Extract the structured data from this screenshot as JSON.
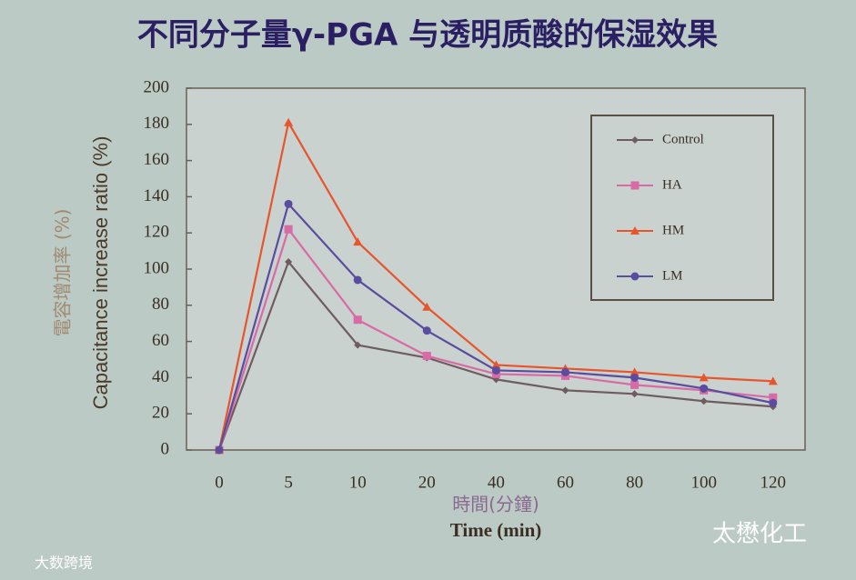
{
  "chart_data": {
    "type": "line",
    "title": "不同分子量γ-PGA 与透明质酸的保湿效果",
    "y_label_cn": "電容增加率 (%)",
    "y_label": "Capacitance increase ratio (%)",
    "x_label_cn": "時間(分鐘)",
    "x_label": "Time (min)",
    "categories": [
      "0",
      "5",
      "10",
      "20",
      "40",
      "60",
      "80",
      "100",
      "120"
    ],
    "series": [
      {
        "name": "Control",
        "color": "#6e5c60",
        "marker": "diamond",
        "values": [
          0,
          104,
          58,
          51,
          39,
          33,
          31,
          27,
          24
        ]
      },
      {
        "name": "HA",
        "color": "#d86aa6",
        "marker": "square",
        "values": [
          0,
          122,
          72,
          52,
          42,
          41,
          36,
          33,
          29
        ]
      },
      {
        "name": "HM",
        "color": "#e8542c",
        "marker": "triangle",
        "values": [
          0,
          181,
          115,
          79,
          47,
          45,
          43,
          40,
          38
        ]
      },
      {
        "name": "LM",
        "color": "#5a4c9e",
        "marker": "circle",
        "values": [
          0,
          136,
          94,
          66,
          44,
          43,
          40,
          34,
          26
        ]
      }
    ],
    "ylim": [
      0,
      200
    ],
    "yticks": [
      0,
      20,
      40,
      60,
      80,
      100,
      120,
      140,
      160,
      180,
      200
    ],
    "legend": "top-right"
  },
  "watermarks": [
    "太懋化工",
    "大数跨境"
  ]
}
